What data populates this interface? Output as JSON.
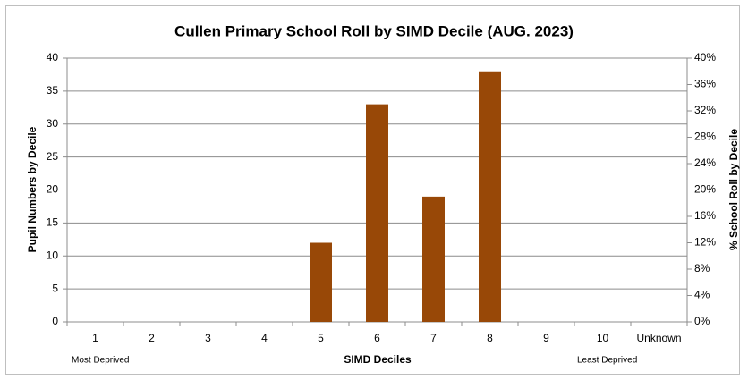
{
  "chart_data": {
    "type": "bar",
    "title": "Cullen Primary School Roll by SIMD Decile (AUG. 2023)",
    "x_label": "SIMD Deciles",
    "y_label": "Pupil Numbers by Decile",
    "y2_label": "% School Roll by Decile",
    "annotations": [
      "Most Deprived",
      "Least Deprived"
    ],
    "categories": [
      "1",
      "2",
      "3",
      "4",
      "5",
      "6",
      "7",
      "8",
      "9",
      "10",
      "Unknown"
    ],
    "values": [
      0,
      0,
      0,
      0,
      12,
      33,
      19,
      38,
      0,
      0,
      0
    ],
    "color": "#984807",
    "ylim": [
      0,
      40
    ],
    "yticks": [
      0,
      5,
      10,
      15,
      20,
      25,
      30,
      35,
      40
    ],
    "y2lim": [
      0,
      40
    ],
    "y2ticks": [
      {
        "value": 0,
        "label": "0%"
      },
      {
        "value": 4,
        "label": "4%"
      },
      {
        "value": 8,
        "label": "8%"
      },
      {
        "value": 12,
        "label": "12%"
      },
      {
        "value": 16,
        "label": "16%"
      },
      {
        "value": 20,
        "label": "20%"
      },
      {
        "value": 24,
        "label": "24%"
      },
      {
        "value": 28,
        "label": "28%"
      },
      {
        "value": 32,
        "label": "32%"
      },
      {
        "value": 36,
        "label": "36%"
      },
      {
        "value": 40,
        "label": "40%"
      }
    ],
    "grid": true
  }
}
